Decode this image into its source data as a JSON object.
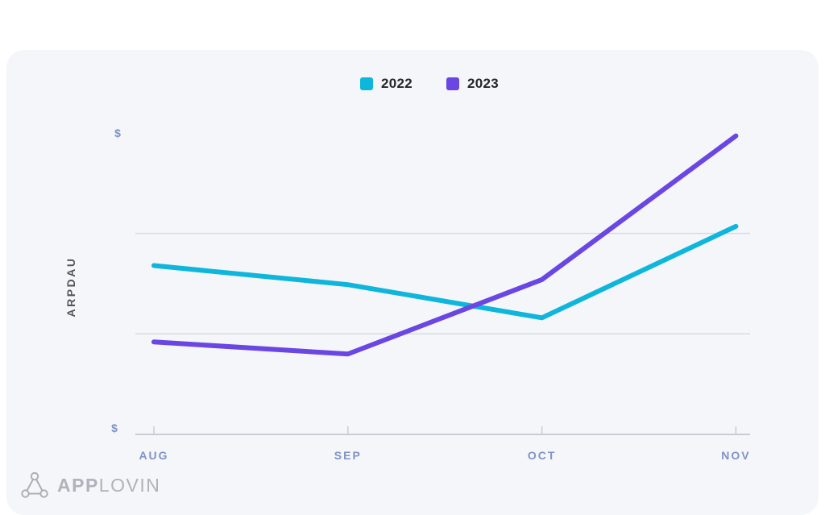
{
  "chart": {
    "legend": {
      "items": [
        {
          "label": "2022",
          "color": "#0fb6db"
        },
        {
          "label": "2023",
          "color": "#6a46e3"
        }
      ]
    },
    "y_axis": {
      "title": "ARPDAU",
      "top_tick_label": "$",
      "bottom_tick_label": "$"
    },
    "x_axis": {
      "labels": [
        "AUG",
        "SEP",
        "OCT",
        "NOV"
      ]
    }
  },
  "chart_data": {
    "type": "line",
    "categories": [
      "AUG",
      "SEP",
      "OCT",
      "NOV"
    ],
    "series": [
      {
        "name": "2022",
        "color": "#0fb6db",
        "values": [
          1.68,
          1.49,
          1.16,
          2.07
        ]
      },
      {
        "name": "2023",
        "color": "#6a46e3",
        "values": [
          0.92,
          0.8,
          1.54,
          2.97
        ]
      }
    ],
    "title": "",
    "xlabel": "",
    "ylabel": "ARPDAU",
    "ylim": [
      0,
      3.2
    ],
    "y_units": "dollars; numeric values unlabeled, axis shows only $ symbols at top and bottom",
    "gridlines_at": [
      1,
      2
    ],
    "grid": "horizontal only",
    "legend_position": "top-center"
  },
  "footer": {
    "logo": {
      "brand_bold": "APP",
      "brand_light": "LOVIN",
      "icon": "applovin-triangle-logo"
    }
  },
  "colors": {
    "panel_background": "#f5f6fa",
    "page_background": "#ffffff",
    "series_2022": "#0fb6db",
    "series_2023": "#6a46e3",
    "axis_label_blue": "#7e93c6",
    "axis_line": "#c7ccd5",
    "gridline": "#d7dbe2",
    "legend_text": "#25252b",
    "y_title_text": "#54565c",
    "logo_gray": "#afb3ba"
  }
}
